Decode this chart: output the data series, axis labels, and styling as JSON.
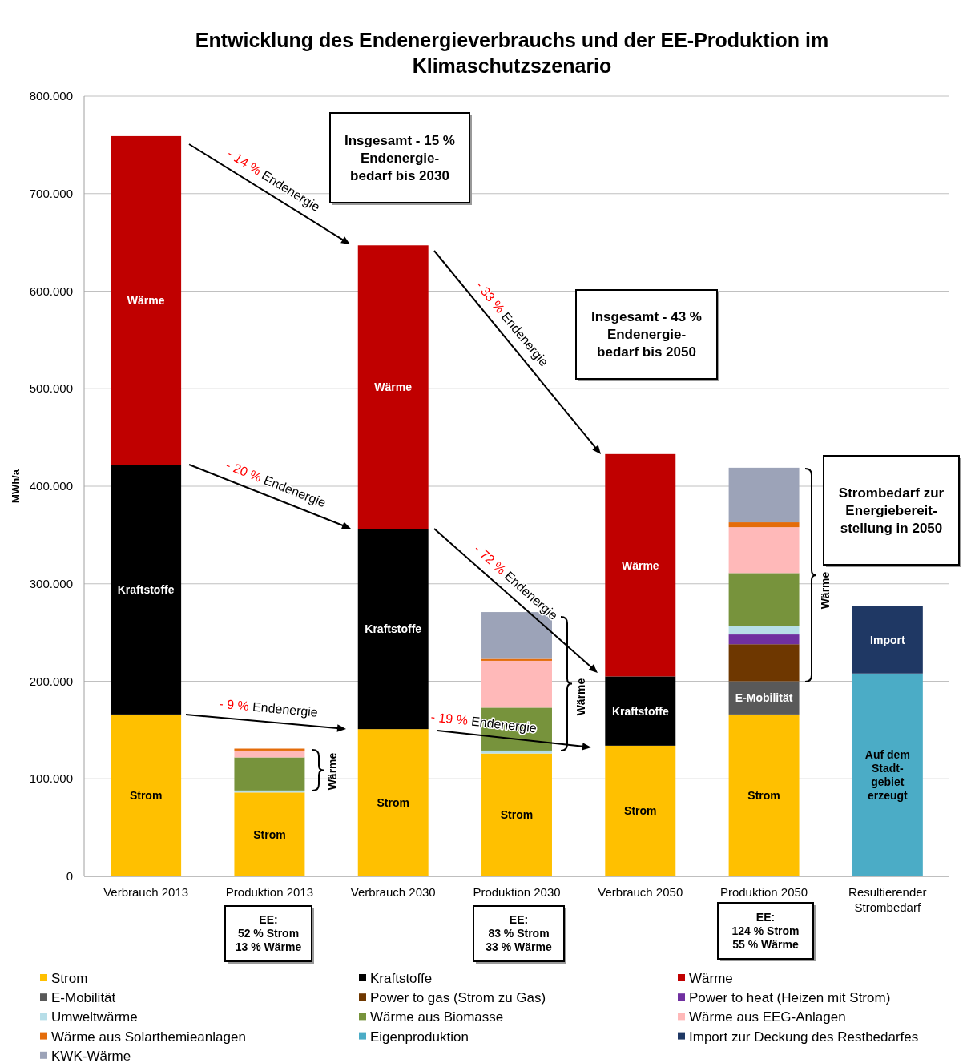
{
  "chart_data": {
    "type": "bar",
    "stacked": true,
    "title": "Entwicklung des Endenergieverbrauchs und der EE-Produktion im Klimaschutzszenario",
    "ylabel": "MWh/a",
    "categories": [
      "Verbrauch 2013",
      "Produktion 2013",
      "Verbrauch 2030",
      "Produktion 2030",
      "Verbrauch 2050",
      "Produktion 2050",
      "Resultierender Strombedarf"
    ],
    "ylim": [
      0,
      800000
    ],
    "yticks": [
      0,
      {
        "value": 100000,
        "label": "100.000"
      },
      {
        "value": 200000,
        "label": "200.000"
      },
      {
        "value": 300000,
        "label": "300.000"
      },
      {
        "value": 400000,
        "label": "400.000"
      },
      {
        "value": 500000,
        "label": "500.000"
      },
      {
        "value": 600000,
        "label": "600.000"
      },
      {
        "value": 700000,
        "label": "700.000"
      },
      {
        "value": 800000,
        "label": "800.000"
      }
    ],
    "grid": "y",
    "legend": "bottom",
    "series": [
      {
        "name": "Strom",
        "color": "#ffc000",
        "values": [
          166000,
          86000,
          151000,
          126000,
          134000,
          166000,
          null
        ],
        "value_labels": [
          "Strom",
          "Strom",
          "Strom",
          "Strom",
          "Strom",
          "Strom",
          null
        ]
      },
      {
        "name": "Kraftstoffe",
        "color": "#000000",
        "values": [
          256000,
          null,
          205000,
          null,
          71000,
          null,
          null
        ],
        "value_labels": [
          "Kraftstoffe",
          null,
          "Kraftstoffe",
          null,
          "Kraftstoffe",
          null,
          null
        ]
      },
      {
        "name": "Wärme",
        "color": "#c00000",
        "values": [
          337000,
          null,
          291000,
          null,
          228000,
          null,
          null
        ],
        "value_labels": [
          "Wärme",
          null,
          "Wärme",
          null,
          "Wärme",
          null,
          null
        ]
      },
      {
        "name": "E-Mobilität",
        "color": "#595959",
        "values": [
          null,
          null,
          null,
          null,
          null,
          34000,
          null
        ],
        "value_labels": [
          null,
          null,
          null,
          null,
          null,
          "E-Mobilität",
          null
        ]
      },
      {
        "name": "Power to gas (Strom zu Gas)",
        "color": "#6e3700",
        "values": [
          null,
          null,
          null,
          null,
          null,
          38000,
          null
        ]
      },
      {
        "name": "Power to heat (Heizen mit Strom)",
        "color": "#7030a0",
        "values": [
          null,
          null,
          null,
          null,
          null,
          10000,
          null
        ]
      },
      {
        "name": "Umweltwärme",
        "color": "#b7dee8",
        "values": [
          null,
          2000,
          null,
          3000,
          null,
          9000,
          null
        ]
      },
      {
        "name": "Wärme aus Biomasse",
        "color": "#77933c",
        "values": [
          null,
          34000,
          null,
          44000,
          null,
          54000,
          null
        ]
      },
      {
        "name": "Wärme aus EEG-Anlagen",
        "color": "#ffb9b9",
        "values": [
          null,
          7000,
          null,
          48000,
          null,
          47000,
          null
        ]
      },
      {
        "name": "Wärme aus Solarthemieanlagen",
        "color": "#e46c0a",
        "values": [
          null,
          2000,
          null,
          2000,
          null,
          5000,
          null
        ]
      },
      {
        "name": "Eigenproduktion",
        "color": "#4bacc6",
        "values": [
          null,
          null,
          null,
          null,
          null,
          null,
          208000
        ],
        "value_labels": [
          null,
          null,
          null,
          null,
          null,
          null,
          "Auf dem\nStadt-\ngebiet\nerzeugt"
        ]
      },
      {
        "name": "Import zur Deckung des Restbedarfes",
        "color": "#1f3864",
        "values": [
          null,
          null,
          null,
          null,
          null,
          null,
          69000
        ],
        "value_labels": [
          null,
          null,
          null,
          null,
          null,
          null,
          "Import"
        ]
      },
      {
        "name": "KWK-Wärme",
        "color": "#9ca3b8",
        "values": [
          null,
          null,
          null,
          48000,
          null,
          56000,
          null
        ]
      }
    ],
    "annotations": [
      "- 14 % Endenergie",
      "- 20 % Endenergie",
      "- 9 % Endenergie",
      "- 33 % Endenergie",
      "- 72 % Endenergie",
      "- 19 % Endenergie",
      "Insgesamt - 15 %\nEndenergie-\nbedarf bis 2030",
      "Insgesamt - 43 %\nEndenergie-\nbedarf bis 2050",
      "Strombedarf zur\nEnergiebereit-\nstellung in 2050",
      "EE:\n52 % Strom\n13 % Wärme",
      "EE:\n83 % Strom\n33 % Wärme",
      "EE:\n124 % Strom\n55 % Wärme",
      "Wärme",
      "Wärme",
      "Wärme"
    ]
  }
}
